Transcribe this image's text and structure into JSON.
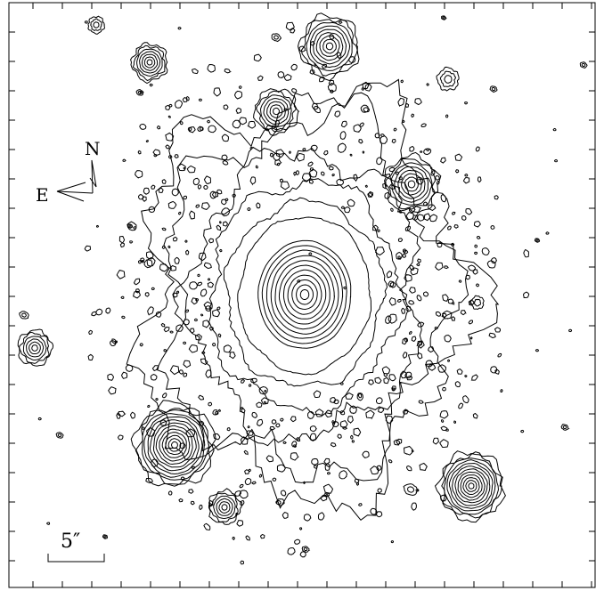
{
  "compass": {
    "north_label": "N",
    "east_label": "E"
  },
  "scale_bar": {
    "label": "5″"
  },
  "colors": {
    "ink": "#000000",
    "background": "#ffffff"
  }
}
